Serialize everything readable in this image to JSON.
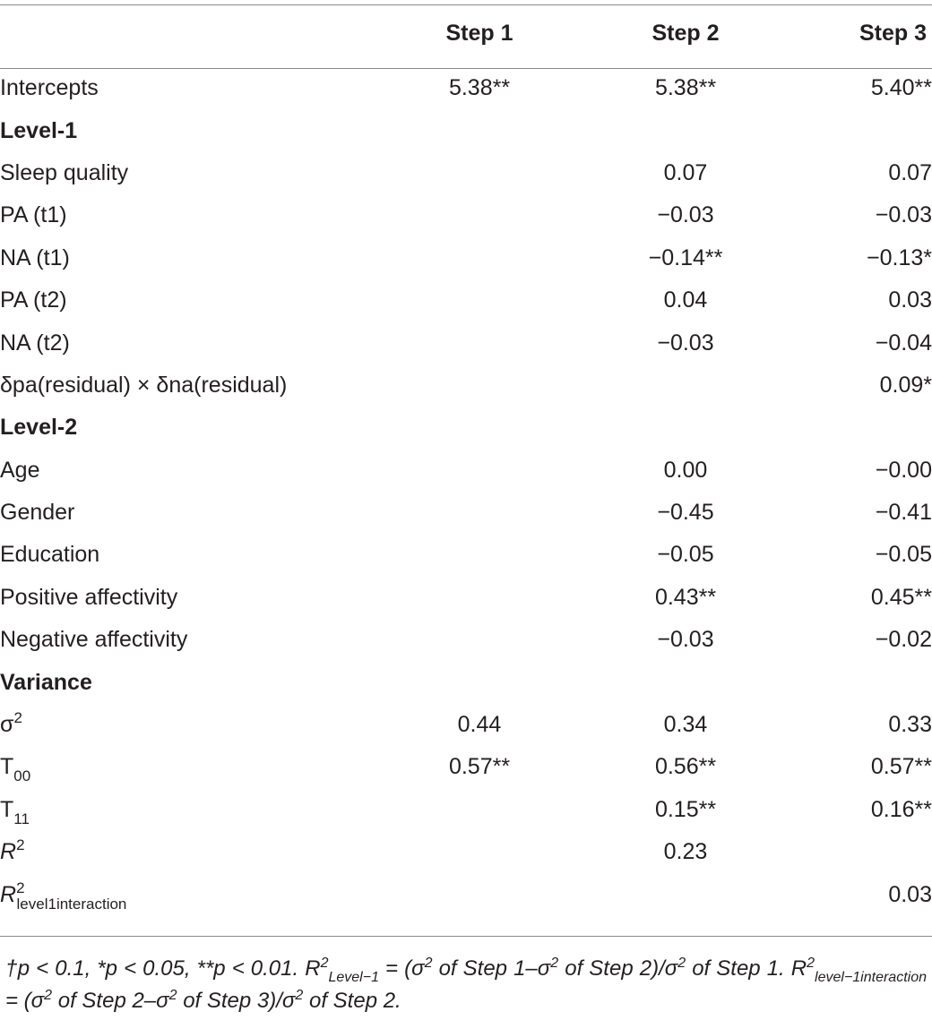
{
  "table": {
    "headers": [
      "",
      "Step 1",
      "Step 2",
      "Step 3"
    ],
    "rows": [
      {
        "label": "Intercepts",
        "s1": "5.38**",
        "s2": "5.38**",
        "s3": "5.40**"
      },
      {
        "label": "Level-1",
        "section": true
      },
      {
        "label": "Sleep quality",
        "s1": "",
        "s2": "0.07",
        "s3": "0.07"
      },
      {
        "label": "PA (t1)",
        "s1": "",
        "s2": "−0.03",
        "s3": "−0.03"
      },
      {
        "label": "NA (t1)",
        "s1": "",
        "s2": "−0.14**",
        "s3": "−0.13*"
      },
      {
        "label": "PA (t2)",
        "s1": "",
        "s2": "0.04",
        "s3": "0.03"
      },
      {
        "label": "NA (t2)",
        "s1": "",
        "s2": "−0.03",
        "s3": "−0.04"
      },
      {
        "label": "δpa(residual) × δna(residual)",
        "s1": "",
        "s2": "",
        "s3": "0.09*"
      },
      {
        "label": "Level-2",
        "section": true
      },
      {
        "label": "Age",
        "s1": "",
        "s2": "0.00",
        "s3": "−0.00"
      },
      {
        "label": "Gender",
        "s1": "",
        "s2": "−0.45",
        "s3": "−0.41"
      },
      {
        "label": "Education",
        "s1": "",
        "s2": "−0.05",
        "s3": "−0.05"
      },
      {
        "label": "Positive affectivity",
        "s1": "",
        "s2": "0.43**",
        "s3": "0.45**"
      },
      {
        "label": "Negative affectivity",
        "s1": "",
        "s2": "−0.03",
        "s3": "−0.02"
      },
      {
        "label": "Variance",
        "section": true
      },
      {
        "label": "σ",
        "sup": "2",
        "s1": "0.44",
        "s2": "0.34",
        "s3": "0.33"
      },
      {
        "label": "T",
        "sub": "00",
        "s1": "0.57**",
        "s2": "0.56**",
        "s3": "0.57**"
      },
      {
        "label": "T",
        "sub": "11",
        "s1": "",
        "s2": "0.15**",
        "s3": "0.16**"
      },
      {
        "label": "R",
        "italic": true,
        "sup": "2",
        "s1": "",
        "s2": "0.23",
        "s3": ""
      },
      {
        "label": "R",
        "italic": true,
        "sup": "2",
        "sub": "level1interaction",
        "s1": "",
        "s2": "",
        "s3": "0.03"
      }
    ]
  },
  "note": {
    "p1": "†p < 0.1, *p < 0.05, **p < 0.01. R",
    "sup1": "2",
    "sub1": "Level−1",
    "p2": " = (σ",
    "sup2": "2",
    "p3": " of Step 1–σ",
    "sup3": "2",
    "p4": " of Step 2)/σ",
    "sup4": "2",
    "p5": " of Step 1. R",
    "sup5": "2",
    "sub5": "level−1interaction",
    "p6": " = (σ",
    "sup6": "2",
    "p7": " of Step 2–σ",
    "sup7": "2",
    "p8": " of Step 3)/σ",
    "sup8": "2",
    "p9": " of Step 2."
  }
}
